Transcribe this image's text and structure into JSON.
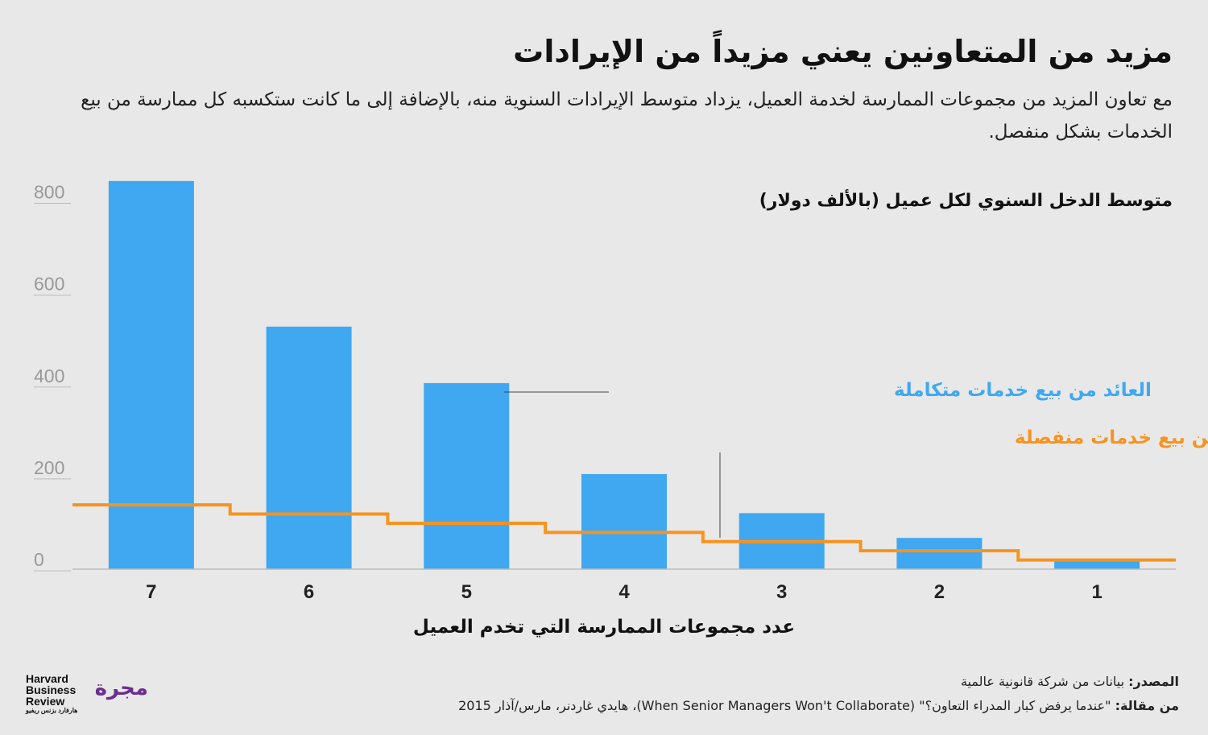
{
  "title": "مزيد من المتعاونين يعني مزيداً من الإيرادات",
  "subtitle": "مع تعاون المزيد من مجموعات الممارسة لخدمة العميل، يزداد متوسط الإيرادات السنوية منه، بالإضافة إلى ما كانت ستكسبه كل ممارسة من بيع الخدمات بشكل منفصل.",
  "unit_label": "متوسط الدخل السنوي لكل عميل (بالألف دولار)",
  "source": {
    "label": "المصدر:",
    "text": "بيانات من شركة قانونية عالمية",
    "article_label": "من مقالة:",
    "article_text": "\"عندما يرفض كبار المدراء التعاون؟\" (When Senior Managers Won't Collaborate)، هايدي غاردنر، مارس/آذار 2015"
  },
  "logos": {
    "hbr_line1": "Harvard",
    "hbr_line2": "Business",
    "hbr_line3": "Review",
    "hbr_arabic": "هارفارد بزنس ريفيو",
    "majarra": "مجرة"
  },
  "colors": {
    "background": "#e8e8e8",
    "bars": "#3fa8f0",
    "line": "#f7931e"
  },
  "chart_data": {
    "type": "bar",
    "categories": [
      "7",
      "6",
      "5",
      "4",
      "3",
      "2",
      "1"
    ],
    "xlabel": "عدد مجموعات الممارسة التي تخدم العميل",
    "ylabel": "متوسط الدخل السنوي لكل عميل (بالألف دولار)",
    "ylim": [
      0,
      850
    ],
    "yticks": [
      0,
      200,
      400,
      600,
      800
    ],
    "grid": false,
    "series": [
      {
        "name": "العائد من بيع خدمات متكاملة",
        "type": "bar",
        "color": "#3fa8f0",
        "values": [
          845,
          528,
          405,
          207,
          122,
          68,
          20
        ]
      },
      {
        "name": "العائد من بيع خدمات منفصلة",
        "type": "step",
        "color": "#f7931e",
        "values": [
          140,
          120,
          100,
          80,
          60,
          40,
          20
        ]
      }
    ]
  }
}
